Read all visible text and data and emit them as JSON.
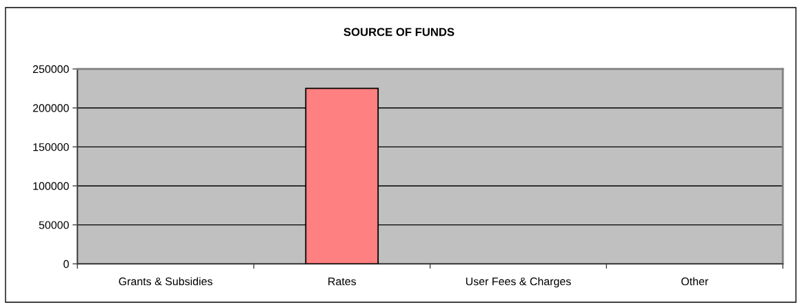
{
  "chart_data": {
    "type": "bar",
    "title": "SOURCE OF FUNDS",
    "categories": [
      "Grants & Subsidies",
      "Rates",
      "User Fees & Charges",
      "Other"
    ],
    "values": [
      0,
      225000,
      0,
      0
    ],
    "color": "#ff8080",
    "ylim": [
      0,
      250000
    ],
    "yticks": [
      0,
      50000,
      100000,
      150000,
      200000,
      250000
    ],
    "grid": "y"
  }
}
